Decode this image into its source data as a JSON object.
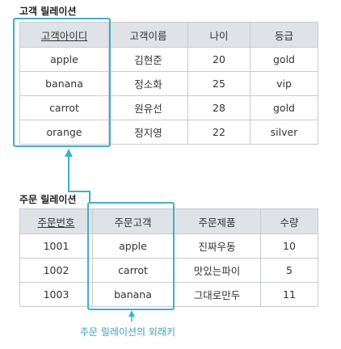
{
  "customer": {
    "title": "고객 릴레이션",
    "headers": [
      "고객아이디",
      "고객이름",
      "나이",
      "등급"
    ],
    "rows": [
      [
        "apple",
        "김현준",
        "20",
        "gold"
      ],
      [
        "banana",
        "정소화",
        "25",
        "vip"
      ],
      [
        "carrot",
        "원유선",
        "28",
        "gold"
      ],
      [
        "orange",
        "정지영",
        "22",
        "silver"
      ]
    ]
  },
  "order": {
    "title": "주문 릴레이션",
    "headers": [
      "주문번호",
      "주문고객",
      "주문제품",
      "수량"
    ],
    "rows": [
      [
        "1001",
        "apple",
        "진짜우동",
        "10"
      ],
      [
        "1002",
        "carrot",
        "맛있는파이",
        "5"
      ],
      [
        "1003",
        "banana",
        "그대로만두",
        "11"
      ]
    ]
  },
  "annotation": {
    "caption": "주문 릴레이션의 외래키",
    "accent_color": "#3fb0c9"
  }
}
